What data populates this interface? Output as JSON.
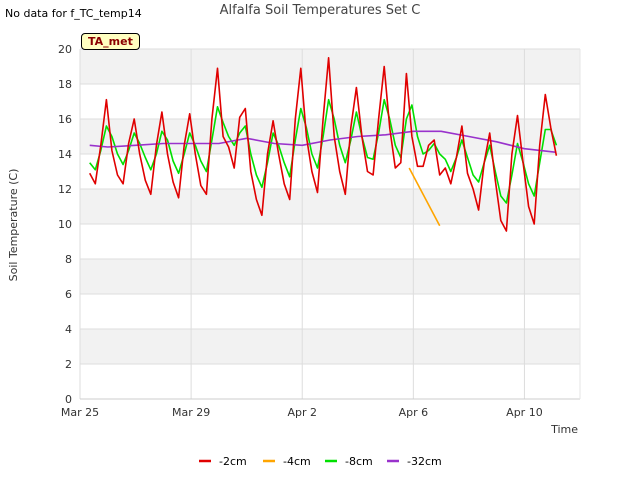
{
  "header": {
    "nodata": "No data for f_TC_temp14",
    "title": "Alfalfa Soil Temperatures Set C",
    "badge": "TA_met"
  },
  "chart_data": {
    "type": "line",
    "title": "Alfalfa Soil Temperatures Set C",
    "xlabel": "Time",
    "ylabel": "Soil Temperature (C)",
    "ylim": [
      0,
      20
    ],
    "xlim": [
      0,
      18
    ],
    "yticks": [
      0,
      2,
      4,
      6,
      8,
      10,
      12,
      14,
      16,
      18,
      20
    ],
    "xticks": [
      {
        "value": 0,
        "label": "Mar 25"
      },
      {
        "value": 4,
        "label": "Mar 29"
      },
      {
        "value": 8,
        "label": "Apr 2"
      },
      {
        "value": 12,
        "label": "Apr 6"
      },
      {
        "value": 16,
        "label": "Apr 10"
      }
    ],
    "grid": true,
    "legend_position": "bottom",
    "series": [
      {
        "name": "-2cm",
        "color": "#e00000",
        "x": [
          0.35,
          0.55,
          0.75,
          0.95,
          1.15,
          1.35,
          1.55,
          1.75,
          1.95,
          2.15,
          2.35,
          2.55,
          2.75,
          2.95,
          3.15,
          3.35,
          3.55,
          3.75,
          3.95,
          4.15,
          4.35,
          4.55,
          4.75,
          4.95,
          5.15,
          5.35,
          5.55,
          5.75,
          5.95,
          6.15,
          6.35,
          6.55,
          6.75,
          6.95,
          7.15,
          7.35,
          7.55,
          7.75,
          7.95,
          8.15,
          8.35,
          8.55,
          8.75,
          8.95,
          9.15,
          9.35,
          9.55,
          9.75,
          9.95,
          10.15,
          10.35,
          10.55,
          10.75,
          10.95,
          11.15,
          11.35,
          11.55,
          11.75,
          11.95,
          12.15,
          12.35,
          12.55,
          12.75,
          12.95,
          13.15,
          13.35,
          13.55,
          13.75,
          13.95,
          14.15,
          14.35,
          14.55,
          14.75,
          14.95,
          15.15,
          15.35,
          15.55,
          15.75,
          15.95,
          16.15,
          16.35,
          16.55,
          16.75,
          16.95,
          17.15
        ],
        "values": [
          12.9,
          12.3,
          14.5,
          17.1,
          14.2,
          12.8,
          12.3,
          14.6,
          16.0,
          14.0,
          12.5,
          11.7,
          14.5,
          16.4,
          14.0,
          12.4,
          11.5,
          14.5,
          16.3,
          14.0,
          12.2,
          11.7,
          16.0,
          18.9,
          15.0,
          14.4,
          13.2,
          16.1,
          16.6,
          13.0,
          11.4,
          10.5,
          14.0,
          15.9,
          14.0,
          12.3,
          11.4,
          16.0,
          18.9,
          15.0,
          13.0,
          11.8,
          16.0,
          19.5,
          15.0,
          13.0,
          11.7,
          15.5,
          17.8,
          15.0,
          13.0,
          12.8,
          16.0,
          19.0,
          15.5,
          13.2,
          13.5,
          18.6,
          15.0,
          13.3,
          13.3,
          14.5,
          14.8,
          12.8,
          13.2,
          12.3,
          13.8,
          15.6,
          12.9,
          12.0,
          10.8,
          13.5,
          15.2,
          12.5,
          10.2,
          9.6,
          14.0,
          16.2,
          13.5,
          11.0,
          10.0,
          14.5,
          17.4,
          15.5,
          13.9
        ]
      },
      {
        "name": "-4cm",
        "color": "#ffa500",
        "x": [
          11.85,
          12.95
        ],
        "values": [
          13.2,
          9.9
        ]
      },
      {
        "name": "-8cm",
        "color": "#00e000",
        "x": [
          0.35,
          0.55,
          0.75,
          0.95,
          1.15,
          1.35,
          1.55,
          1.75,
          1.95,
          2.15,
          2.35,
          2.55,
          2.75,
          2.95,
          3.15,
          3.35,
          3.55,
          3.75,
          3.95,
          4.15,
          4.35,
          4.55,
          4.75,
          4.95,
          5.15,
          5.35,
          5.55,
          5.75,
          5.95,
          6.15,
          6.35,
          6.55,
          6.75,
          6.95,
          7.15,
          7.35,
          7.55,
          7.75,
          7.95,
          8.15,
          8.35,
          8.55,
          8.75,
          8.95,
          9.15,
          9.35,
          9.55,
          9.75,
          9.95,
          10.15,
          10.35,
          10.55,
          10.75,
          10.95,
          11.15,
          11.35,
          11.55,
          11.75,
          11.95,
          12.15,
          12.35,
          12.55,
          12.75,
          12.95,
          13.15,
          13.35,
          13.55,
          13.75,
          13.95,
          14.15,
          14.35,
          14.55,
          14.75,
          14.95,
          15.15,
          15.35,
          15.55,
          15.75,
          15.95,
          16.15,
          16.35,
          16.55,
          16.75,
          16.95,
          17.15
        ],
        "values": [
          13.5,
          13.1,
          14.2,
          15.6,
          15.0,
          14.0,
          13.4,
          14.2,
          15.2,
          14.6,
          13.8,
          13.1,
          14.0,
          15.3,
          14.8,
          13.6,
          12.9,
          14.0,
          15.2,
          14.5,
          13.6,
          13.0,
          14.8,
          16.7,
          15.8,
          15.0,
          14.5,
          15.2,
          15.6,
          14.0,
          12.8,
          12.1,
          13.5,
          15.2,
          14.5,
          13.5,
          12.7,
          14.8,
          16.6,
          15.5,
          14.0,
          13.2,
          15.0,
          17.1,
          16.0,
          14.5,
          13.5,
          14.8,
          16.4,
          15.0,
          13.8,
          13.7,
          15.2,
          17.1,
          16.0,
          14.5,
          13.8,
          16.0,
          16.8,
          15.0,
          14.0,
          14.2,
          14.6,
          14.0,
          13.7,
          13.0,
          13.8,
          14.8,
          13.8,
          12.8,
          12.4,
          13.5,
          14.5,
          13.0,
          11.6,
          11.2,
          12.8,
          14.6,
          13.5,
          12.3,
          11.6,
          13.5,
          15.4,
          15.4,
          14.5
        ]
      },
      {
        "name": "-32cm",
        "color": "#9932cc",
        "x": [
          0.35,
          1.0,
          2.0,
          3.0,
          4.0,
          5.0,
          6.0,
          7.0,
          8.0,
          9.0,
          10.0,
          11.0,
          12.0,
          13.0,
          14.0,
          15.0,
          16.0,
          17.15
        ],
        "values": [
          14.5,
          14.4,
          14.5,
          14.6,
          14.6,
          14.6,
          14.9,
          14.6,
          14.5,
          14.8,
          15.0,
          15.1,
          15.3,
          15.3,
          15.0,
          14.7,
          14.3,
          14.1
        ]
      }
    ]
  }
}
